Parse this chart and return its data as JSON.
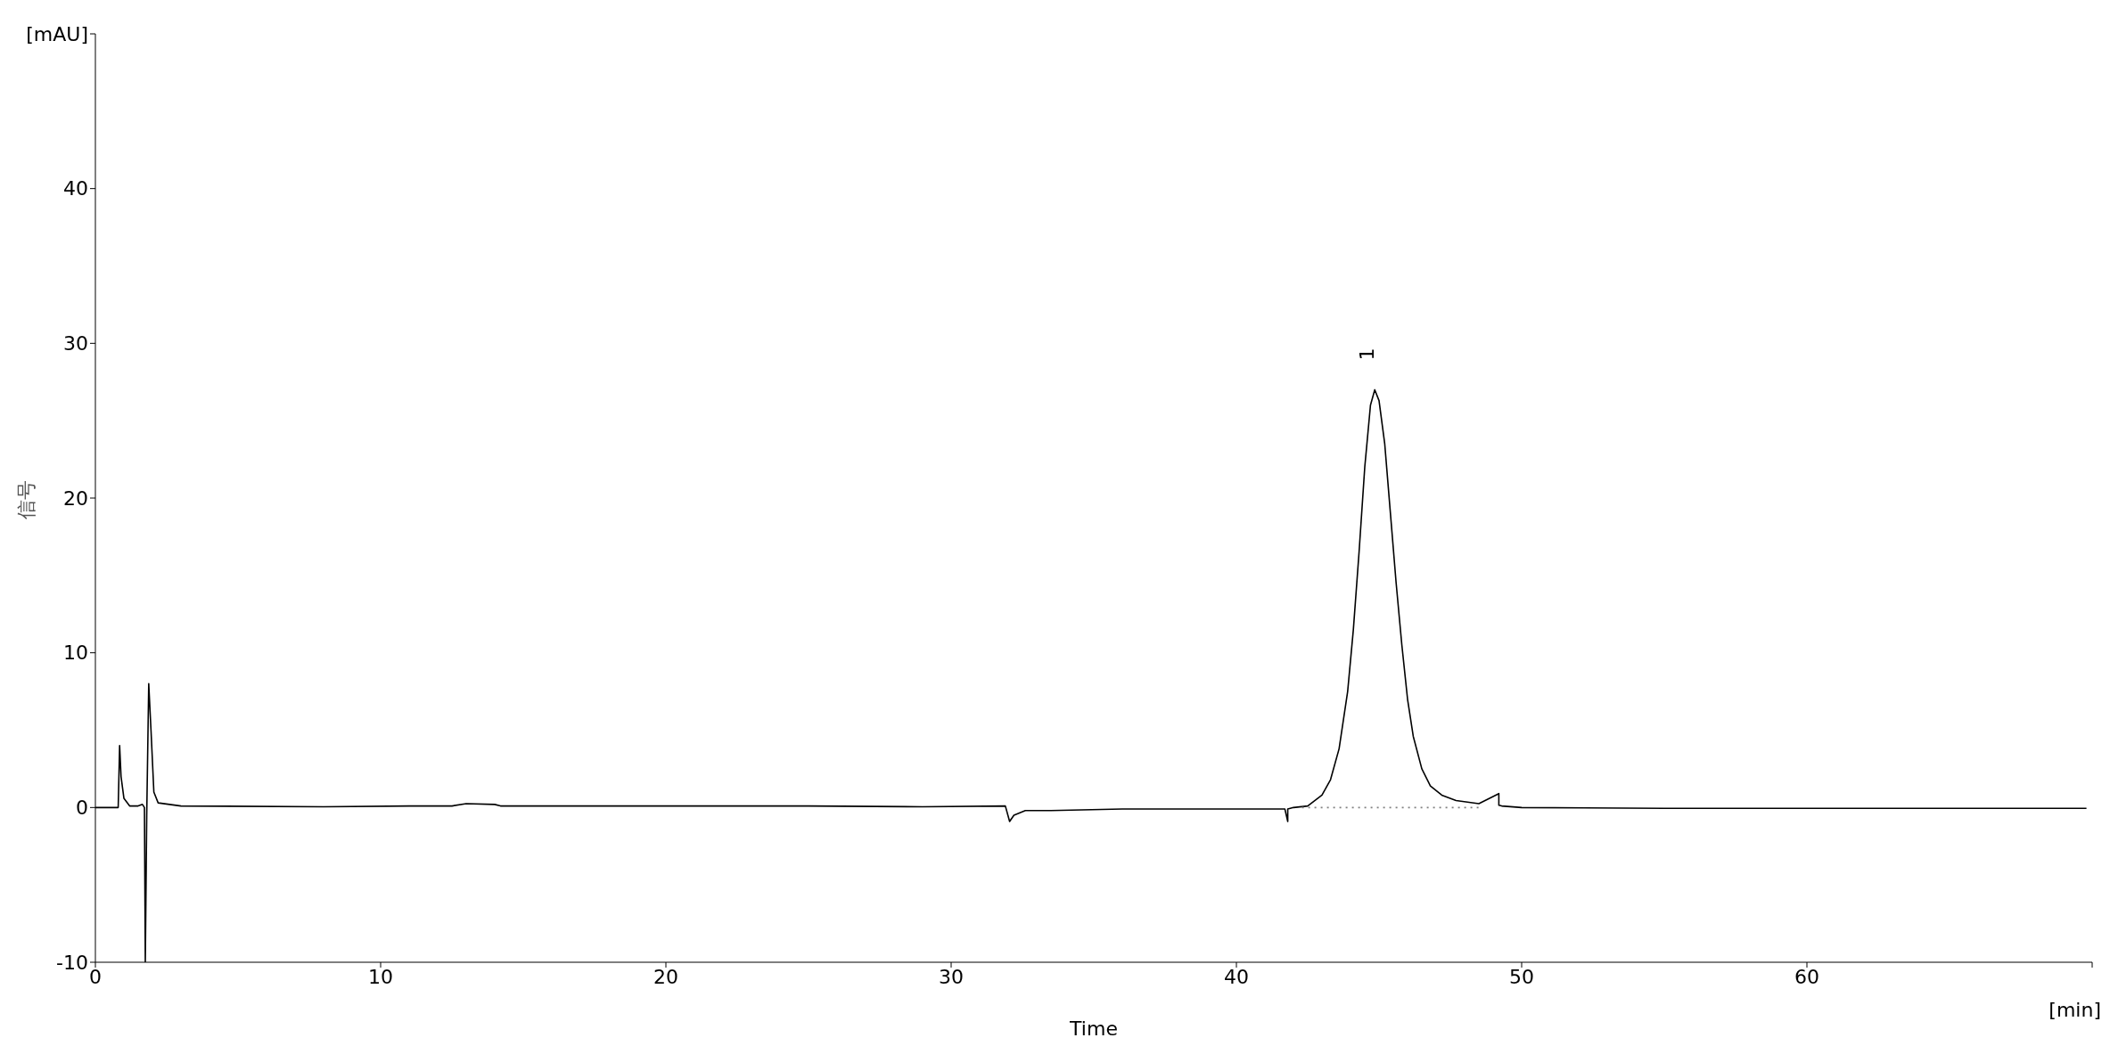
{
  "chart_data": {
    "type": "line",
    "xlabel": "Time",
    "ylabel": "信号",
    "xlim": [
      0,
      70
    ],
    "xticks": [
      0,
      10,
      20,
      30,
      40,
      50,
      60,
      {
        "value": 70,
        "label": null
      }
    ],
    "ylim": [
      -10,
      50
    ],
    "yticks": [
      -10,
      0,
      10,
      20,
      30,
      40,
      {
        "value": 50,
        "label": "[mAU]"
      }
    ],
    "marker": "none",
    "annotations": [
      "[min]",
      {
        "text": "1",
        "x": 44.8,
        "y": 27
      }
    ],
    "series": [
      {
        "color": "#000000",
        "line_style": "solid",
        "x": [
          0,
          0.8,
          0.85,
          0.9,
          1.0,
          1.2,
          1.5,
          1.65,
          1.72,
          1.75,
          1.8,
          1.87,
          1.95,
          2.05,
          2.2,
          3,
          8,
          11,
          12.5,
          13,
          14,
          14.2,
          25,
          29,
          31.9,
          32.05,
          32.2,
          32.6,
          33.5,
          36,
          41.7,
          41.8,
          41.8,
          42.0,
          42.5,
          43.0,
          43.3,
          43.6,
          43.9,
          44.1,
          44.3,
          44.5,
          44.7,
          44.85,
          45.0,
          45.2,
          45.4,
          45.6,
          45.8,
          46.0,
          46.2,
          46.5,
          46.8,
          47.2,
          47.7,
          48.5,
          49.2,
          49.2,
          49.3,
          50,
          55,
          69.8
        ],
        "values": [
          0,
          0,
          4.0,
          2,
          0.6,
          0.1,
          0.1,
          0.2,
          0,
          -10,
          -0.5,
          8.0,
          5,
          1,
          0.3,
          0.1,
          0.05,
          0.1,
          0.1,
          0.25,
          0.2,
          0.1,
          0.1,
          0.05,
          0.1,
          -0.9,
          -0.5,
          -0.2,
          -0.2,
          -0.1,
          -0.1,
          -0.9,
          -0.1,
          0,
          0.1,
          0.8,
          1.8,
          3.8,
          7.5,
          11.5,
          16.5,
          22,
          26,
          27.0,
          26.3,
          23.5,
          19,
          14.5,
          10.5,
          7,
          4.6,
          2.5,
          1.4,
          0.8,
          0.45,
          0.25,
          0.9,
          0.15,
          0.1,
          0,
          -0.05,
          -0.05
        ]
      },
      {
        "color": "#808080",
        "line_style": "dotted",
        "x": [
          42.3,
          48.5
        ],
        "values": [
          0,
          0
        ]
      }
    ]
  }
}
